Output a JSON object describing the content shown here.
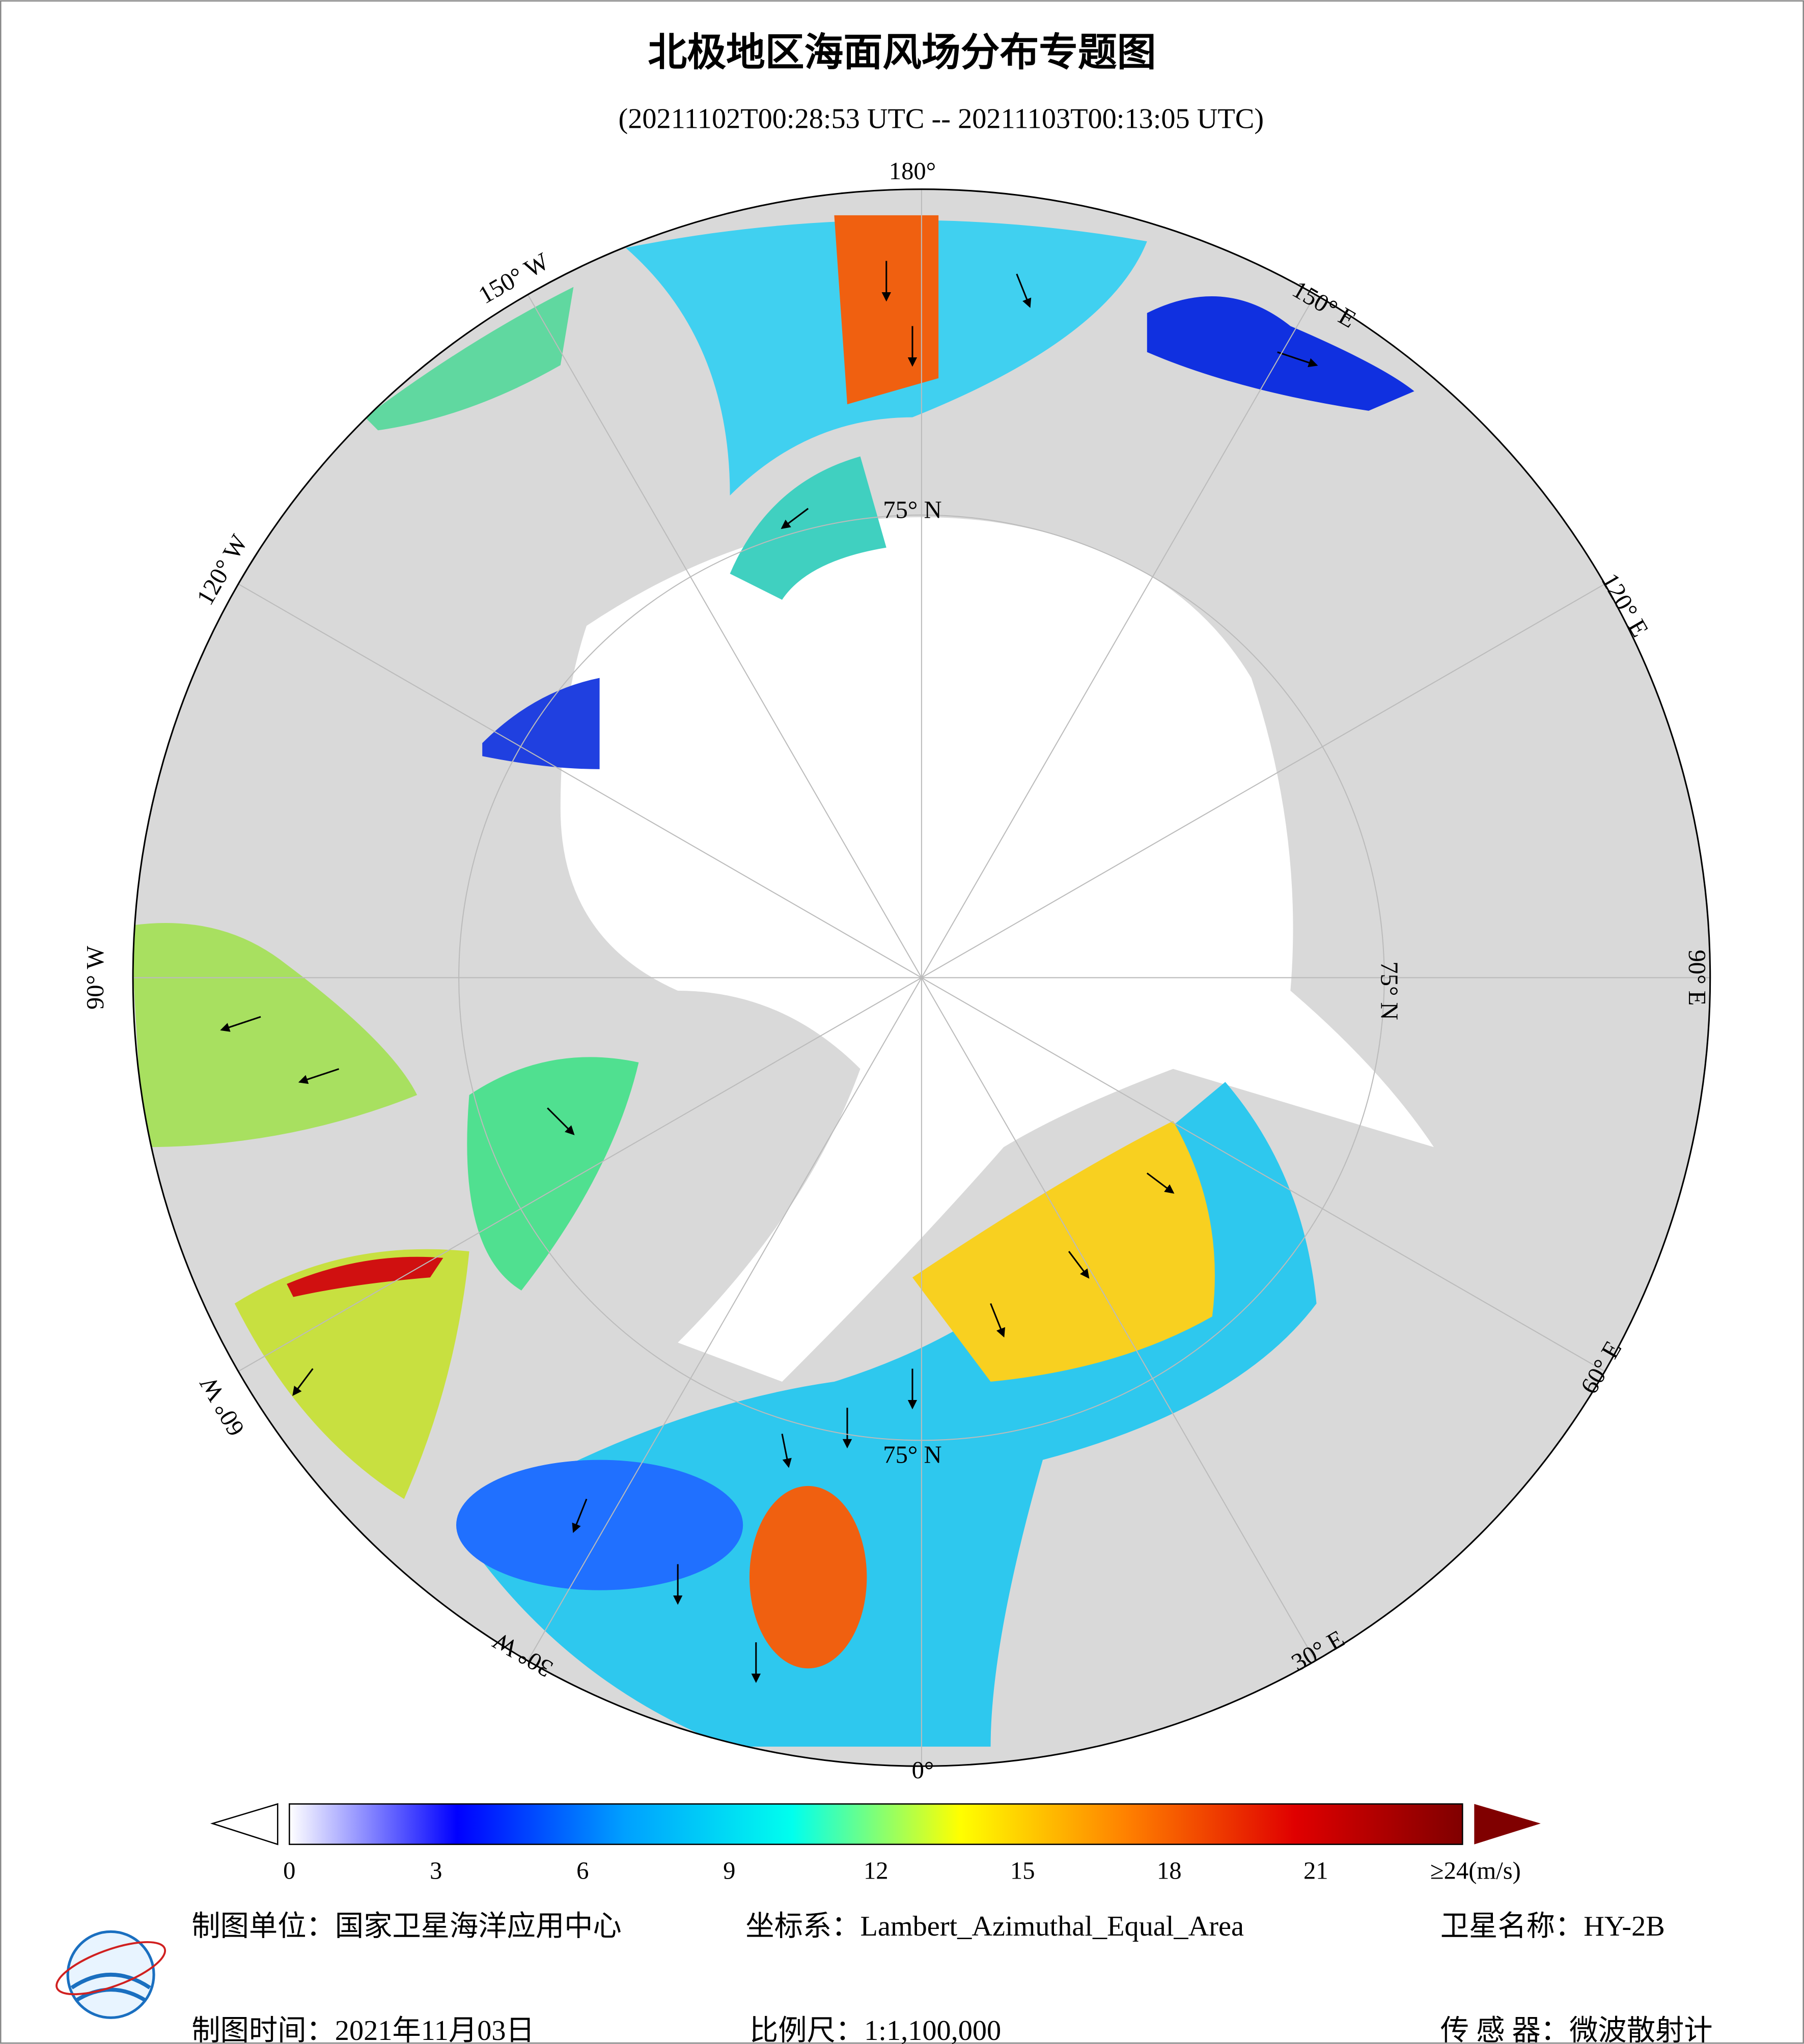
{
  "title": "北极地区海面风场分布专题图",
  "subtitle": "(20211102T00:28:53 UTC -- 20211103T00:13:05 UTC)",
  "map": {
    "lon_labels": [
      "180°",
      "150° E",
      "120° E",
      "90° E",
      "60° E",
      "30° E",
      "0°",
      "30° W",
      "60° W",
      "90° W",
      "120° W",
      "150° W"
    ],
    "lat_labels": [
      "75° N",
      "75° N",
      "75° N"
    ]
  },
  "colorbar": {
    "lim": [
      0,
      24
    ],
    "ticks": [
      0,
      3,
      6,
      9,
      12,
      15,
      18,
      21,
      {
        "value": 24,
        "label": "≥24(m/s)"
      }
    ],
    "colors": [
      "#ffffff",
      "#0000ff",
      "#00a0ff",
      "#00ffee",
      "#ffff00",
      "#ff8000",
      "#e00000",
      "#800000"
    ]
  },
  "footer": {
    "items": [
      "制图单位：国家卫星海洋应用中心",
      "坐标系：Lambert_Azimuthal_Equal_Area",
      "卫星名称：HY-2B",
      "制图时间：2021年11月03日",
      "比例尺：1:1,100,000",
      "传 感 器：微波散射计"
    ]
  }
}
